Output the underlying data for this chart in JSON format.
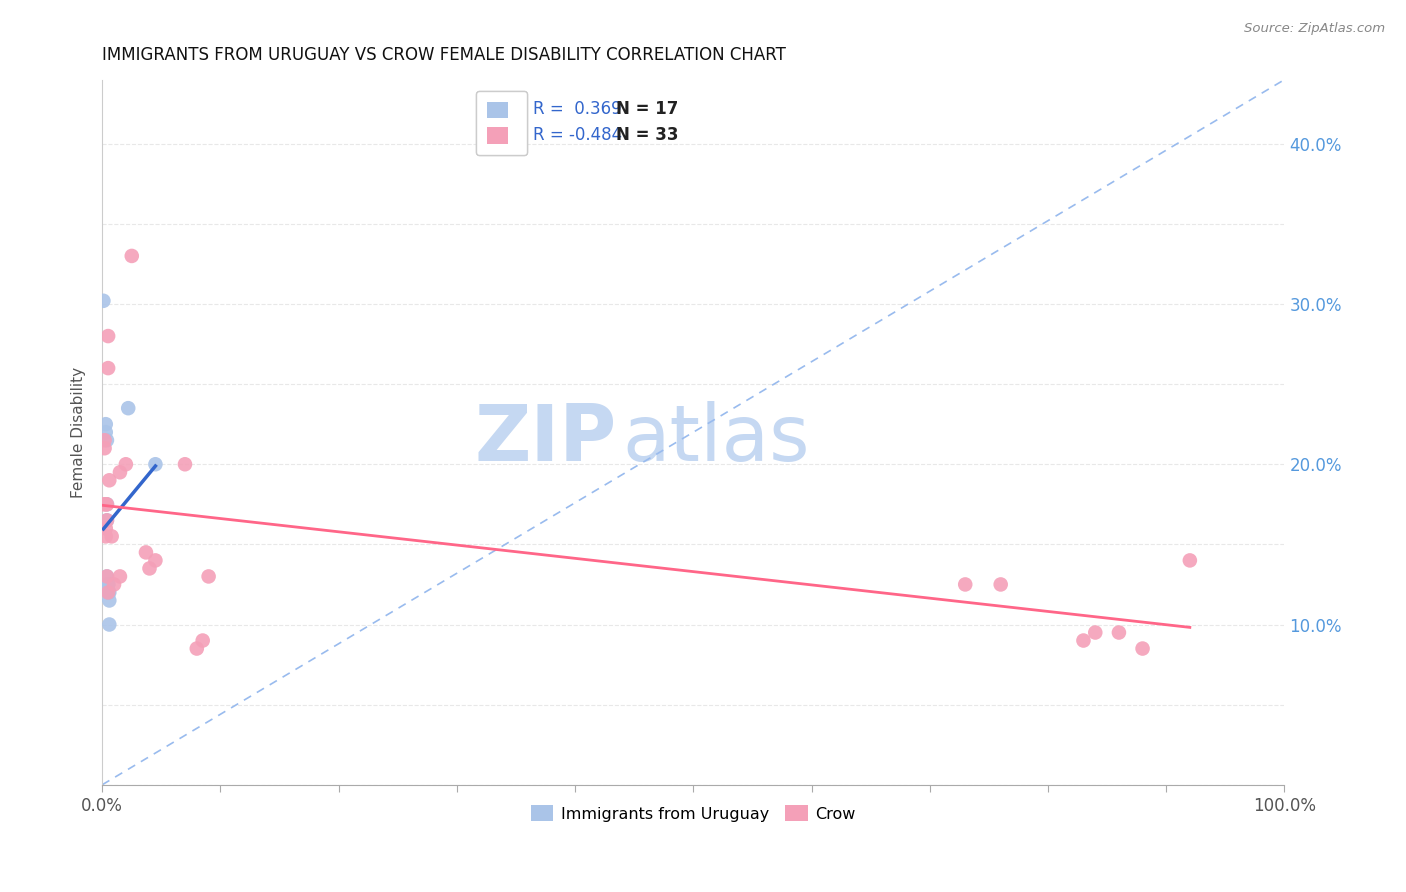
{
  "title": "IMMIGRANTS FROM URUGUAY VS CROW FEMALE DISABILITY CORRELATION CHART",
  "source": "Source: ZipAtlas.com",
  "ylabel": "Female Disability",
  "blue_color": "#aac4e8",
  "pink_color": "#f4a0b8",
  "blue_line_color": "#3366cc",
  "pink_line_color": "#ff6688",
  "dash_line_color": "#99bbee",
  "watermark_zip": "ZIP",
  "watermark_atlas": "atlas",
  "watermark_color_zip": "#c5d8f2",
  "watermark_color_atlas": "#c5d8f2",
  "blue_r_text": "R =  0.369",
  "blue_n_text": "N = 17",
  "pink_r_text": "R = -0.484",
  "pink_n_text": "N = 33",
  "legend_text_color": "#3366cc",
  "legend_rn_black": "N =",
  "right_tick_color": "#5599dd",
  "grid_color": "#e8e8e8",
  "blue_points_x": [
    0.001,
    0.003,
    0.003,
    0.004,
    0.004,
    0.004,
    0.004,
    0.005,
    0.005,
    0.005,
    0.005,
    0.005,
    0.006,
    0.006,
    0.006,
    0.022,
    0.045
  ],
  "blue_points_y": [
    0.302,
    0.225,
    0.22,
    0.215,
    0.175,
    0.165,
    0.13,
    0.125,
    0.125,
    0.125,
    0.12,
    0.12,
    0.12,
    0.115,
    0.1,
    0.235,
    0.2
  ],
  "pink_points_x": [
    0.001,
    0.002,
    0.002,
    0.003,
    0.003,
    0.003,
    0.004,
    0.004,
    0.004,
    0.005,
    0.005,
    0.005,
    0.006,
    0.008,
    0.01,
    0.015,
    0.015,
    0.02,
    0.025,
    0.037,
    0.04,
    0.045,
    0.07,
    0.08,
    0.085,
    0.09,
    0.73,
    0.76,
    0.83,
    0.84,
    0.86,
    0.88,
    0.92
  ],
  "pink_points_y": [
    0.175,
    0.215,
    0.21,
    0.175,
    0.16,
    0.155,
    0.175,
    0.165,
    0.13,
    0.28,
    0.26,
    0.12,
    0.19,
    0.155,
    0.125,
    0.195,
    0.13,
    0.2,
    0.33,
    0.145,
    0.135,
    0.14,
    0.2,
    0.085,
    0.09,
    0.13,
    0.125,
    0.125,
    0.09,
    0.095,
    0.095,
    0.085,
    0.14
  ],
  "xlim": [
    0.0,
    1.0
  ],
  "ylim": [
    0.0,
    0.44
  ],
  "right_yticks": [
    0.0,
    0.1,
    0.2,
    0.3,
    0.4
  ],
  "right_yticklabels": [
    "",
    "10.0%",
    "20.0%",
    "30.0%",
    "40.0%"
  ]
}
